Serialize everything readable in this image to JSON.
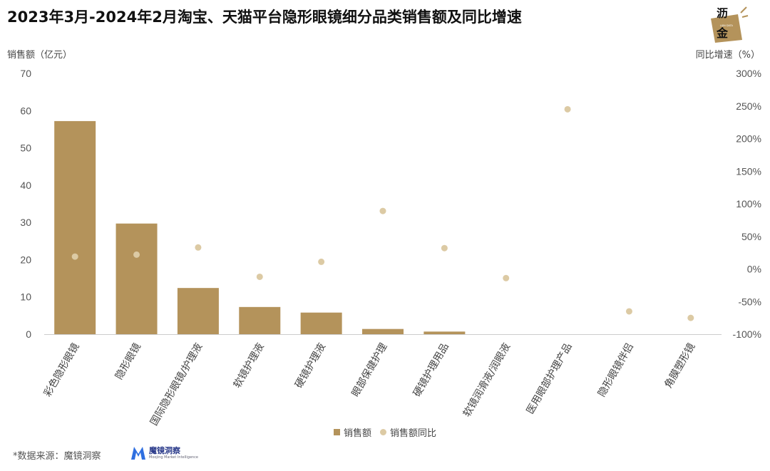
{
  "header": {
    "title": "2023年3月-2024年2月淘宝、天猫平台隐形眼镜细分品类销售额及同比增速",
    "logo_text": "沥金",
    "logo_small_text": "LIJIN DATA"
  },
  "axes": {
    "left_title": "销售额（亿元）",
    "right_title": "同比增速（%）"
  },
  "legend": {
    "bar_label": "销售额",
    "dot_label": "销售额同比"
  },
  "footer": {
    "source": "*数据来源：魔镜洞察",
    "brand_name": "魔镜洞察",
    "brand_sub": "Moojing Market Intelligence"
  },
  "colors": {
    "bar": "#b4935b",
    "dot": "#dccaa4",
    "axis_line": "#cccccc",
    "tick_text": "#555555"
  },
  "chart_data": {
    "type": "bar",
    "categories": [
      "彩色隐形眼镜",
      "隐形眼镜",
      "国际隐形眼镜/护理液",
      "软镜护理液",
      "硬镜护理液",
      "眼部保健护理",
      "硬镜护理用品",
      "软镜润滑液/润眼液",
      "医用眼部护理产品",
      "隐形眼镜伴侣",
      "角膜塑形镜"
    ],
    "series": [
      {
        "name": "销售额",
        "type": "bar",
        "axis": "left",
        "values": [
          57.2,
          29.7,
          12.4,
          7.3,
          5.8,
          1.4,
          0.7,
          0.05,
          0.03,
          0.02,
          0.01
        ]
      },
      {
        "name": "销售额同比",
        "type": "scatter",
        "axis": "right",
        "values": [
          19,
          22,
          33,
          -12,
          11,
          89,
          32,
          -14,
          245,
          -65,
          -75
        ]
      }
    ],
    "ylabel": "销售额（亿元）",
    "y2label": "同比增速（%）",
    "ylim": [
      0,
      70
    ],
    "yticks": [
      0,
      10,
      20,
      30,
      40,
      50,
      60,
      70
    ],
    "y2lim": [
      -100,
      300
    ],
    "y2ticks": [
      "-100%",
      "-50%",
      "0%",
      "50%",
      "100%",
      "150%",
      "200%",
      "250%",
      "300%"
    ],
    "y2tick_values": [
      -100,
      -50,
      0,
      50,
      100,
      150,
      200,
      250,
      300
    ],
    "grid": false,
    "legend_position": "bottom"
  }
}
